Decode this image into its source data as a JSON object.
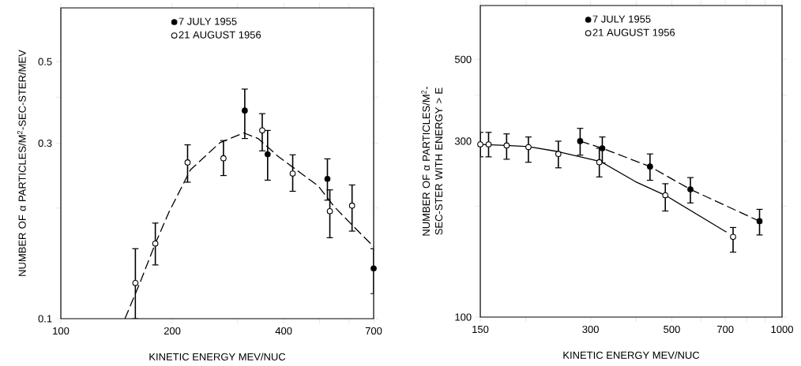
{
  "chart_data": [
    {
      "type": "scatter",
      "xlabel": "KINETIC ENERGY MEV/NUC",
      "ylabel": "NUMBER OF α PARTICLES/M$^{2}$-SEC-STER/MEV",
      "log": "xy",
      "legend": "top",
      "xlim": [
        100,
        700
      ],
      "ylim": [
        0.1,
        0.7
      ],
      "xticks": [
        100,
        200,
        {
          "value": 300,
          "label": null
        },
        400,
        {
          "value": 500,
          "label": null
        },
        {
          "value": 600,
          "label": null
        },
        700
      ],
      "yticks": [
        0.1,
        {
          "value": 0.2,
          "label": null
        },
        0.3,
        {
          "value": 0.4,
          "label": null
        },
        0.5
      ],
      "series": [
        {
          "name": "7 JULY 1955",
          "color": "#000000",
          "marker": "circle",
          "x": [
            314,
            362,
            525,
            700
          ],
          "values": [
            0.368,
            0.28,
            0.24,
            0.137
          ],
          "errors": [
            [
              0.309,
              0.421
            ],
            [
              0.238,
              0.325
            ],
            [
              0.21,
              0.272
            ],
            [
              0.117,
              0.155
            ]
          ]
        },
        {
          "name": "21 AUGUST 1956",
          "color": "#ffffff",
          "marker": "circle",
          "x": [
            159,
            180,
            220,
            275,
            350,
            423,
            533,
            612
          ],
          "values": [
            0.125,
            0.16,
            0.266,
            0.273,
            0.325,
            0.248,
            0.196,
            0.203
          ],
          "errors": [
            [
              0.1,
              0.155
            ],
            [
              0.14,
              0.182
            ],
            [
              0.235,
              0.297
            ],
            [
              0.245,
              0.305
            ],
            [
              0.286,
              0.361
            ],
            [
              0.222,
              0.279
            ],
            [
              0.166,
              0.224
            ],
            [
              0.173,
              0.231
            ]
          ]
        },
        {
          "type": "line",
          "color": "#000000",
          "marker": "none",
          "line_style": "dashed",
          "x": [
            149,
            164,
            180,
            196,
            224,
            269,
            312,
            341,
            387,
            442,
            495,
            547,
            625,
            700
          ],
          "values": [
            0.1,
            0.126,
            0.16,
            0.195,
            0.254,
            0.301,
            0.32,
            0.309,
            0.276,
            0.25,
            0.23,
            0.202,
            0.176,
            0.157
          ]
        }
      ]
    },
    {
      "type": "scatter",
      "xlabel": "KINETIC ENERGY MEV/NUC",
      "ylabel": "NUMBER OF α PARTICLES/M$^{2}$-SEC-STER WITH ENERGY > E",
      "log": "xy",
      "legend": "top",
      "xlim": [
        150,
        1000
      ],
      "ylim": [
        100,
        700
      ],
      "xticks": [
        150,
        {
          "value": 200,
          "label": null
        },
        300,
        {
          "value": 400,
          "label": null
        },
        500,
        {
          "value": 600,
          "label": null
        },
        700,
        {
          "value": 800,
          "label": null
        },
        {
          "value": 900,
          "label": null
        },
        1000
      ],
      "yticks": [
        100,
        {
          "value": 200,
          "label": null
        },
        300,
        {
          "value": 400,
          "label": null
        },
        500
      ],
      "series": [
        {
          "name": "7 JULY 1955",
          "color": "#000000",
          "marker": "circle",
          "x": [
            281,
            323,
            436,
            562,
            868
          ],
          "values": [
            300,
            287,
            256,
            222,
            182
          ],
          "errors": [
            [
              275,
              325
            ],
            [
              262,
              308
            ],
            [
              235,
              277
            ],
            [
              204,
              239
            ],
            [
              167,
              196
            ]
          ]
        },
        {
          "name": "21 AUGUST 1956",
          "color": "#ffffff",
          "marker": "circle",
          "x": [
            150,
            158,
            177,
            203,
            245,
            317,
            480,
            735
          ],
          "values": [
            294,
            294,
            292,
            289,
            277,
            263,
            214,
            165
          ],
          "errors": [
            [
              272,
              317
            ],
            [
              272,
              317
            ],
            [
              268,
              314
            ],
            [
              263,
              308
            ],
            [
              254,
              300
            ],
            [
              240,
              287
            ],
            [
              194,
              230
            ],
            [
              150,
              175
            ]
          ]
        },
        {
          "type": "line",
          "color": "#000000",
          "marker": "none",
          "line_style": "solid",
          "x": [
            150,
            177,
            203,
            245,
            320,
            398,
            480,
            705
          ],
          "values": [
            294,
            292,
            290,
            281,
            264,
            233,
            214,
            170
          ]
        },
        {
          "type": "line",
          "color": "#000000",
          "marker": "none",
          "line_style": "dashed",
          "x": [
            281,
            320,
            436,
            562,
            868
          ],
          "values": [
            300,
            288,
            256,
            222,
            182
          ]
        }
      ]
    }
  ]
}
